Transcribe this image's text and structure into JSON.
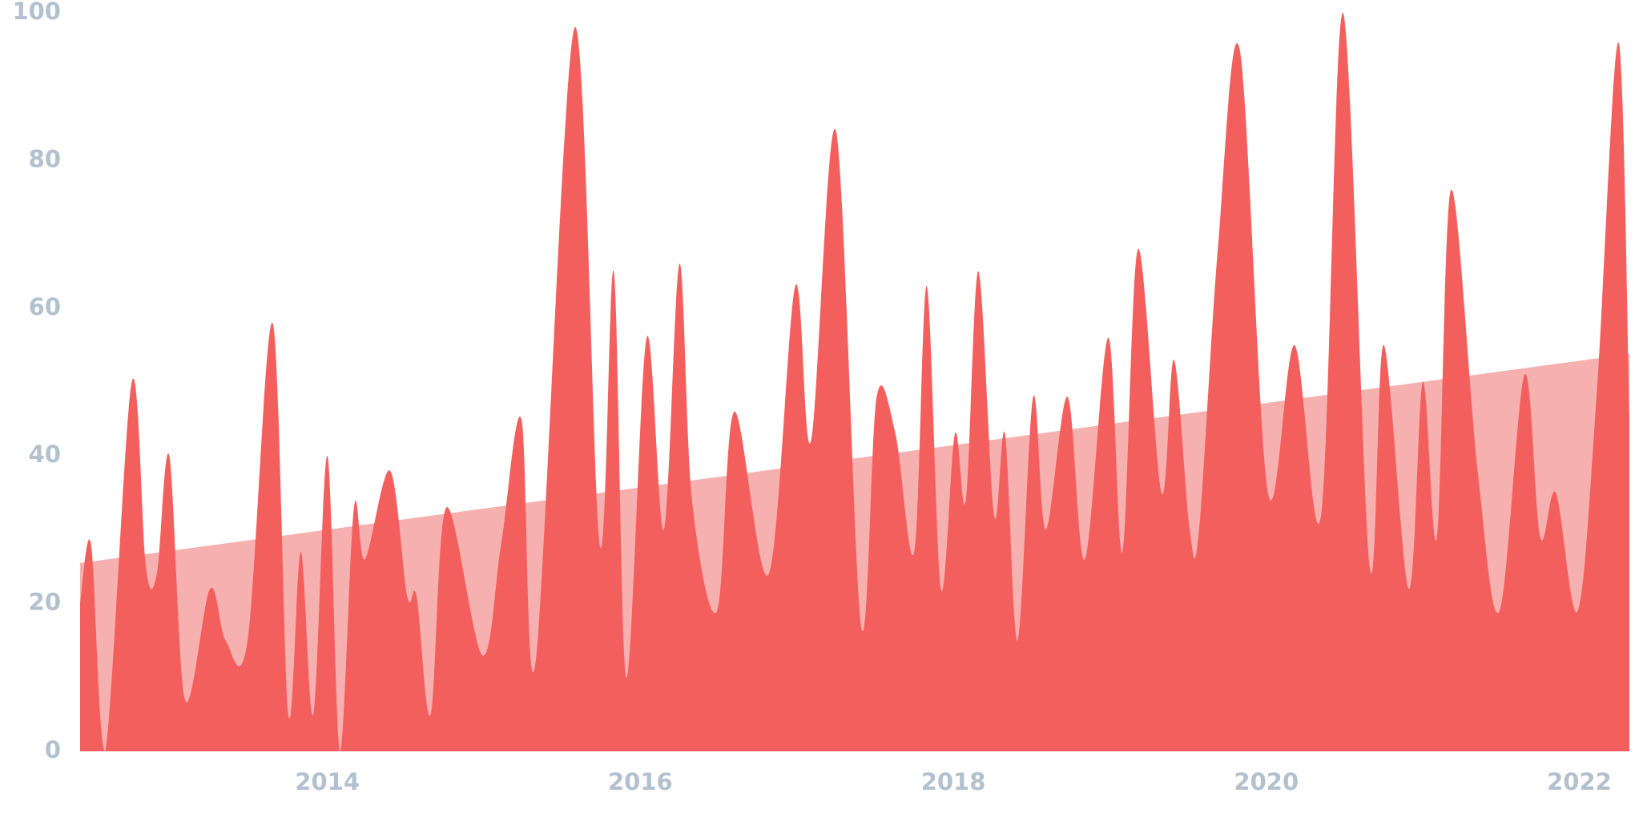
{
  "chart_data": {
    "type": "area",
    "x": [
      2012.42,
      2012.49,
      2012.58,
      2012.75,
      2012.84,
      2012.91,
      2012.99,
      2013.09,
      2013.25,
      2013.35,
      2013.49,
      2013.65,
      2013.75,
      2013.83,
      2013.91,
      2014.0,
      2014.08,
      2014.17,
      2014.24,
      2014.4,
      2014.51,
      2014.57,
      2014.66,
      2014.76,
      2014.99,
      2015.11,
      2015.24,
      2015.33,
      2015.58,
      2015.74,
      2015.83,
      2015.91,
      2016.04,
      2016.15,
      2016.25,
      2016.33,
      2016.49,
      2016.6,
      2016.82,
      2016.99,
      2017.09,
      2017.25,
      2017.41,
      2017.51,
      2017.63,
      2017.75,
      2017.83,
      2017.92,
      2018.01,
      2018.08,
      2018.16,
      2018.26,
      2018.33,
      2018.41,
      2018.51,
      2018.59,
      2018.73,
      2018.84,
      2018.99,
      2019.08,
      2019.18,
      2019.33,
      2019.41,
      2019.51,
      2019.57,
      2019.69,
      2019.83,
      2020.01,
      2020.18,
      2020.35,
      2020.49,
      2020.66,
      2020.75,
      2020.91,
      2021.0,
      2021.09,
      2021.18,
      2021.35,
      2021.49,
      2021.65,
      2021.75,
      2021.85,
      2021.99,
      2022.11,
      2022.25,
      2022.32
    ],
    "series": [
      {
        "color": "#f7b0b0",
        "x": [
          2012.42,
          2022.32
        ],
        "values": [
          25.5,
          53.8
        ]
      },
      {
        "color": "#f25f5c",
        "values": [
          20,
          28,
          0,
          50,
          25,
          24,
          40,
          7,
          22,
          15,
          15,
          58,
          5,
          27,
          5,
          40,
          0,
          33,
          26,
          38,
          21,
          21,
          5,
          33,
          13,
          28,
          45,
          12,
          98,
          28,
          65,
          10,
          56,
          30,
          66,
          34,
          19,
          46,
          24,
          63,
          42,
          84,
          17,
          48,
          43,
          27,
          63,
          22,
          43,
          34,
          65,
          32,
          43,
          15,
          48,
          30,
          48,
          26,
          56,
          27,
          68,
          35,
          53,
          30,
          30,
          68,
          95,
          35,
          55,
          32,
          100,
          25,
          55,
          22,
          50,
          29,
          76,
          38,
          19,
          51,
          29,
          35,
          19,
          48,
          96,
          45
        ]
      }
    ],
    "xlim": [
      2012.42,
      2022.32
    ],
    "xticks": [
      2014,
      2016,
      2018,
      2020,
      2022
    ],
    "ylim": [
      0,
      100
    ],
    "yticks": [
      0,
      20,
      40,
      60,
      80,
      100
    ],
    "grid": false
  }
}
